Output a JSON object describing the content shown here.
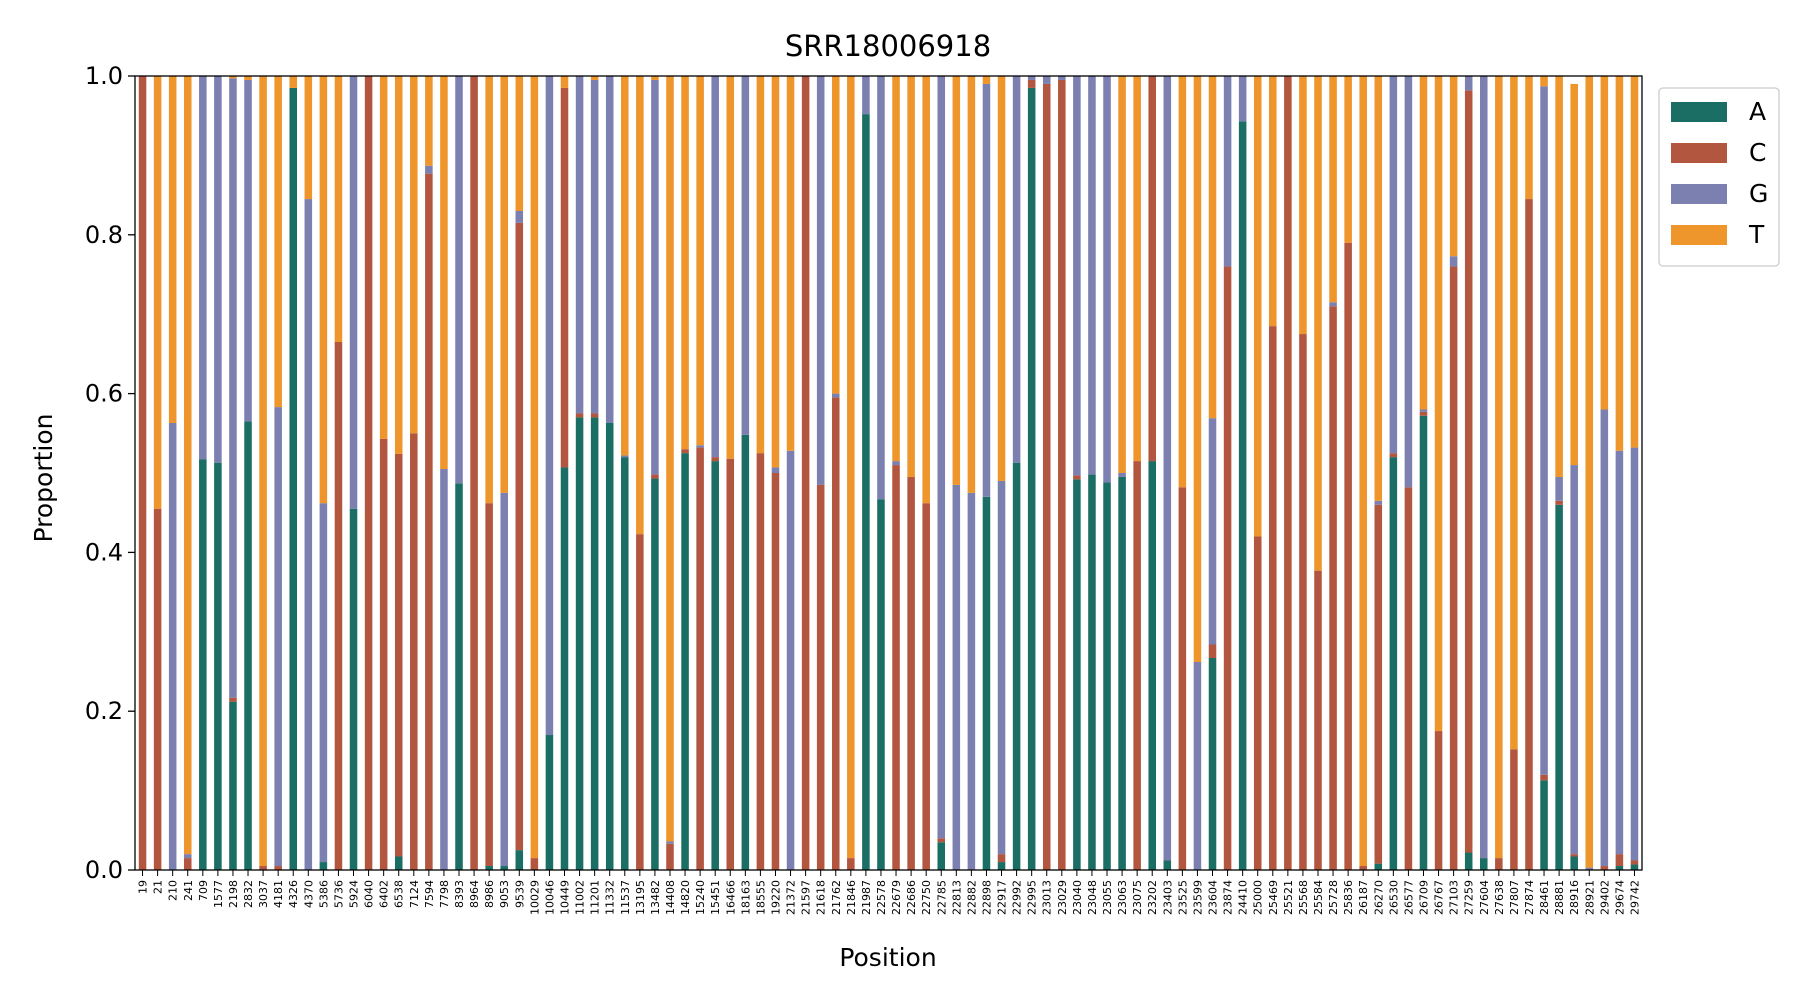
{
  "chart_data": {
    "type": "bar",
    "stacked": true,
    "title": "SRR18006918",
    "xlabel": "Position",
    "ylabel": "Proportion",
    "ylim": [
      0,
      1
    ],
    "yticks": [
      "0.0",
      "0.2",
      "0.4",
      "0.6",
      "0.8",
      "1.0"
    ],
    "grid": false,
    "legend_position": "outside-top-right",
    "categories": [
      "19",
      "21",
      "210",
      "241",
      "709",
      "1577",
      "2198",
      "2832",
      "3037",
      "4181",
      "4326",
      "4370",
      "5386",
      "5736",
      "5924",
      "6040",
      "6402",
      "6538",
      "7124",
      "7594",
      "7798",
      "8393",
      "8964",
      "8986",
      "9053",
      "9539",
      "10029",
      "10046",
      "10449",
      "11002",
      "11201",
      "11332",
      "11537",
      "13195",
      "13482",
      "14408",
      "14820",
      "15240",
      "15451",
      "16466",
      "18163",
      "18555",
      "19220",
      "21372",
      "21597",
      "21618",
      "21762",
      "21846",
      "21987",
      "22578",
      "22679",
      "22686",
      "22750",
      "22785",
      "22813",
      "22882",
      "22898",
      "22917",
      "22992",
      "22995",
      "23013",
      "23029",
      "23040",
      "23048",
      "23055",
      "23063",
      "23075",
      "23202",
      "23403",
      "23525",
      "23599",
      "23604",
      "23874",
      "24410",
      "25000",
      "25469",
      "25521",
      "25568",
      "25584",
      "25728",
      "25836",
      "26187",
      "26270",
      "26530",
      "26577",
      "26709",
      "26767",
      "27103",
      "27259",
      "27604",
      "27638",
      "27807",
      "27874",
      "28461",
      "28881",
      "28916",
      "28921",
      "29402",
      "29674",
      "29742"
    ],
    "series": [
      {
        "name": "A",
        "color": "#1b6e63",
        "values": [
          0,
          0,
          0,
          0,
          0.517,
          0.513,
          0.212,
          0.565,
          0,
          0,
          0.985,
          0,
          0.01,
          0,
          0.455,
          0,
          0,
          0.017,
          0,
          0,
          0,
          0.487,
          0,
          0.005,
          0.005,
          0.025,
          0,
          0.17,
          0.507,
          0.57,
          0.57,
          0.563,
          0.52,
          0,
          0.493,
          0,
          0.525,
          0,
          0.515,
          0,
          0.548,
          0,
          0,
          0,
          0,
          0,
          0,
          0,
          0.952,
          0.467,
          0,
          0,
          0,
          0.035,
          0,
          0,
          0.47,
          0.01,
          0.513,
          0.985,
          0,
          0,
          0.492,
          0.498,
          0.488,
          0.495,
          0,
          0.515,
          0.012,
          0,
          0,
          0.267,
          0,
          0.943,
          0,
          0,
          0,
          0,
          0,
          0,
          0,
          0,
          0.008,
          0.52,
          0,
          0.572,
          0,
          0,
          0.022,
          0.015,
          0,
          0,
          0,
          0.113,
          0.46,
          0.017,
          0,
          0,
          0.005,
          0.007
        ]
      },
      {
        "name": "C",
        "color": "#b35640",
        "values": [
          1.0,
          0.455,
          0,
          0.015,
          0,
          0,
          0.005,
          0,
          0.005,
          0.005,
          0,
          0,
          0,
          0.665,
          0,
          1.0,
          0.543,
          0.507,
          0.55,
          0.877,
          0,
          0,
          1.0,
          0.457,
          0,
          0.79,
          0.015,
          0,
          0.478,
          0.005,
          0.005,
          0,
          0,
          0.423,
          0.005,
          0.033,
          0.005,
          0.532,
          0.005,
          0.518,
          0,
          0.525,
          0.5,
          0,
          1.0,
          0.485,
          0.595,
          0.015,
          0,
          0,
          0.51,
          0.495,
          0.462,
          0.005,
          0,
          0,
          0,
          0.01,
          0,
          0.01,
          0.99,
          0.995,
          0.005,
          0,
          0,
          0,
          0.515,
          0.485,
          0,
          0.482,
          0,
          0.017,
          0.76,
          0,
          0.42,
          0.685,
          1.0,
          0.675,
          0.377,
          0.71,
          0.79,
          0.005,
          0.452,
          0.005,
          0.482,
          0.005,
          0.175,
          0.76,
          0.96,
          0,
          0.015,
          0.152,
          0.845,
          0.007,
          0.005,
          0.003,
          0,
          0.005,
          0.015,
          0.005
        ]
      },
      {
        "name": "G",
        "color": "#7b80b1",
        "values": [
          0,
          0,
          0.563,
          0.005,
          0.483,
          0.487,
          0.78,
          0.43,
          0,
          0.578,
          0,
          0.845,
          0.452,
          0,
          0.545,
          0,
          0,
          0,
          0,
          0.01,
          0.505,
          0.513,
          0,
          0,
          0.47,
          0.015,
          0,
          0.83,
          0,
          0.425,
          0.42,
          0.437,
          0.002,
          0,
          0.497,
          0.003,
          0,
          0.003,
          0.48,
          0,
          0.452,
          0,
          0.007,
          0.528,
          0,
          0.515,
          0.005,
          0,
          0.048,
          0.533,
          0.005,
          0,
          0,
          0.96,
          0.485,
          0.475,
          0.52,
          0.47,
          0.487,
          0.005,
          0.01,
          0.005,
          0.503,
          0.502,
          0.512,
          0.005,
          0,
          0,
          0.988,
          0,
          0.262,
          0.285,
          0.24,
          0.057,
          0,
          0,
          0,
          0,
          0,
          0.005,
          0,
          0,
          0.005,
          0.475,
          0.518,
          0.003,
          0,
          0.013,
          0.018,
          0.985,
          0,
          0,
          0,
          0.867,
          0.03,
          0.49,
          0.003,
          0.575,
          0.508,
          0.52
        ]
      },
      {
        "name": "T",
        "color": "#ee952b",
        "values": [
          0,
          0.545,
          0.437,
          0.98,
          0,
          0,
          0.003,
          0.005,
          0.995,
          0.417,
          0.015,
          0.155,
          0.538,
          0.335,
          0,
          0,
          0.457,
          0.476,
          0.45,
          0.113,
          0.495,
          0,
          0,
          0.538,
          0.525,
          0.17,
          0.985,
          0,
          0.015,
          0,
          0.005,
          0,
          0.478,
          0.577,
          0.005,
          0.964,
          0.47,
          0.465,
          0,
          0.482,
          0,
          0.475,
          0.493,
          0.472,
          0,
          0,
          0.4,
          0.985,
          0,
          0,
          0.485,
          0.505,
          0.538,
          0,
          0.515,
          0.525,
          0.01,
          0.51,
          0,
          0,
          0,
          0,
          0,
          0,
          0,
          0.5,
          0.485,
          0,
          0,
          0.518,
          0.738,
          0.431,
          0,
          0,
          0.58,
          0.315,
          0,
          0.325,
          0.623,
          0.285,
          0.21,
          0.995,
          0.535,
          0,
          0,
          0.42,
          0.825,
          0.227,
          0,
          0,
          0.985,
          0.848,
          0.155,
          0.013,
          0.505,
          0.48,
          0.997,
          0.42,
          0.472,
          0.468
        ]
      }
    ]
  }
}
